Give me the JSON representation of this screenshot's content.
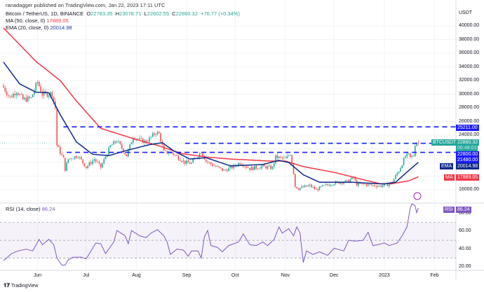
{
  "header": {
    "published": "ranadagger published on TradingView.com, Jan 22, 2023 17:11 UTC"
  },
  "legend": {
    "symbol": "Bitcoin / TetherUS, 1D, BINANCE",
    "o_label": "O",
    "o": "22783.35",
    "h_label": "H",
    "h": "23078.71",
    "l_label": "L",
    "l": "22602.55",
    "c_label": "C",
    "c": "22860.32",
    "change": "+76.77 (+0.34%)"
  },
  "ma": {
    "label": "MA (50, close, 0)",
    "value": "17889.05",
    "tag": "MA",
    "color": "#f23645"
  },
  "ema": {
    "label": "EMA (20, close, 0)",
    "value": "20014.98",
    "tag": "EMA",
    "color": "#0d2a8a"
  },
  "rsi": {
    "label": "RSI (14, close)",
    "value": "86.24",
    "tag": "RSI",
    "color": "#7e57c2"
  },
  "price_axis": {
    "unit": "USDT",
    "ticks": [
      "40000.00",
      "38000.00",
      "36000.00",
      "34000.00",
      "32000.00",
      "30000.00",
      "28000.00",
      "26000.00",
      "24000.00",
      "16000.00"
    ]
  },
  "rsi_axis": {
    "ticks": [
      "80.00",
      "60.00",
      "40.00",
      "20.00"
    ]
  },
  "time_axis": {
    "ticks": [
      "Jun",
      "Jul",
      "Aug",
      "Sep",
      "Oct",
      "Nov",
      "Dec",
      "2023",
      "Feb"
    ]
  },
  "price_tags": {
    "symbol": "BTCUSDT",
    "last": "22860.32",
    "countdown": "06:48:03",
    "levels": [
      "25211.00",
      "22800.00",
      "21480.00"
    ]
  },
  "footer": {
    "brand": "TradingView"
  },
  "chart_data": {
    "type": "candlestick",
    "title": "Bitcoin / TetherUS, 1D, BINANCE",
    "start_date": "2022-05-11",
    "ylim": [
      14000,
      41000
    ],
    "close_keypoints": [
      [
        0,
        31000
      ],
      [
        4,
        29500
      ],
      [
        8,
        30500
      ],
      [
        12,
        29200
      ],
      [
        17,
        29400
      ],
      [
        21,
        31800
      ],
      [
        24,
        30000
      ],
      [
        30,
        30100
      ],
      [
        32,
        28000
      ],
      [
        33,
        22500
      ],
      [
        37,
        20500
      ],
      [
        38,
        19000
      ],
      [
        40,
        20500
      ],
      [
        46,
        21000
      ],
      [
        51,
        19300
      ],
      [
        56,
        20500
      ],
      [
        60,
        19300
      ],
      [
        66,
        22400
      ],
      [
        70,
        23200
      ],
      [
        76,
        21000
      ],
      [
        80,
        23800
      ],
      [
        84,
        23300
      ],
      [
        88,
        23000
      ],
      [
        94,
        24400
      ],
      [
        96,
        24200
      ],
      [
        99,
        21500
      ],
      [
        104,
        21400
      ],
      [
        112,
        20000
      ],
      [
        116,
        19900
      ],
      [
        122,
        21600
      ],
      [
        125,
        20200
      ],
      [
        130,
        19500
      ],
      [
        136,
        18800
      ],
      [
        142,
        19400
      ],
      [
        146,
        20000
      ],
      [
        152,
        19100
      ],
      [
        160,
        19400
      ],
      [
        166,
        19200
      ],
      [
        168,
        20800
      ],
      [
        174,
        20500
      ],
      [
        177,
        21300
      ],
      [
        179,
        18500
      ],
      [
        180,
        16500
      ],
      [
        182,
        16200
      ],
      [
        189,
        16600
      ],
      [
        193,
        16000
      ],
      [
        197,
        16500
      ],
      [
        204,
        17000
      ],
      [
        212,
        17200
      ],
      [
        216,
        17800
      ],
      [
        218,
        16800
      ],
      [
        223,
        16800
      ],
      [
        232,
        16550
      ],
      [
        238,
        16800
      ],
      [
        240,
        17200
      ],
      [
        244,
        18800
      ],
      [
        248,
        20900
      ],
      [
        250,
        21100
      ],
      [
        251,
        20700
      ],
      [
        253,
        21000
      ],
      [
        254,
        22700
      ],
      [
        255,
        23000
      ],
      [
        256,
        22860.32
      ]
    ],
    "ma50_keypoints": [
      [
        0,
        39700
      ],
      [
        20,
        34800
      ],
      [
        35,
        32000
      ],
      [
        45,
        29000
      ],
      [
        60,
        25000
      ],
      [
        80,
        23500
      ],
      [
        95,
        22500
      ],
      [
        110,
        21300
      ],
      [
        125,
        20800
      ],
      [
        140,
        20500
      ],
      [
        165,
        20200
      ],
      [
        174,
        20200
      ],
      [
        185,
        19400
      ],
      [
        205,
        18500
      ],
      [
        220,
        17600
      ],
      [
        232,
        16900
      ],
      [
        240,
        16900
      ],
      [
        250,
        17300
      ],
      [
        256,
        17889.05
      ]
    ],
    "ema20_keypoints": [
      [
        0,
        34700
      ],
      [
        10,
        31500
      ],
      [
        20,
        30300
      ],
      [
        28,
        30200
      ],
      [
        35,
        27000
      ],
      [
        45,
        23000
      ],
      [
        55,
        21200
      ],
      [
        65,
        21000
      ],
      [
        75,
        21700
      ],
      [
        90,
        22600
      ],
      [
        98,
        22900
      ],
      [
        105,
        21700
      ],
      [
        115,
        20500
      ],
      [
        125,
        20700
      ],
      [
        140,
        19500
      ],
      [
        160,
        19700
      ],
      [
        170,
        20300
      ],
      [
        176,
        20000
      ],
      [
        185,
        18200
      ],
      [
        195,
        17100
      ],
      [
        215,
        17100
      ],
      [
        235,
        16850
      ],
      [
        242,
        17100
      ],
      [
        250,
        18800
      ],
      [
        256,
        20014.98
      ]
    ],
    "horizontal_levels": [
      {
        "price": 25211,
        "from_day": 37
      },
      {
        "price": 22800,
        "from_day": 112
      },
      {
        "price": 21480,
        "from_day": 39
      }
    ],
    "rsi_keypoints": [
      [
        0,
        27
      ],
      [
        5,
        35
      ],
      [
        9,
        38
      ],
      [
        14,
        40
      ],
      [
        18,
        38
      ],
      [
        22,
        51
      ],
      [
        24,
        45
      ],
      [
        28,
        51
      ],
      [
        31,
        45
      ],
      [
        33,
        30
      ],
      [
        36,
        22
      ],
      [
        38,
        22
      ],
      [
        40,
        28
      ],
      [
        43,
        31
      ],
      [
        48,
        31
      ],
      [
        51,
        29
      ],
      [
        55,
        41
      ],
      [
        57,
        47
      ],
      [
        60,
        46
      ],
      [
        63,
        35
      ],
      [
        68,
        48
      ],
      [
        70,
        61
      ],
      [
        75,
        55
      ],
      [
        77,
        46
      ],
      [
        79,
        61
      ],
      [
        84,
        55
      ],
      [
        88,
        53
      ],
      [
        91,
        58
      ],
      [
        95,
        62
      ],
      [
        99,
        55
      ],
      [
        101,
        48
      ],
      [
        103,
        34
      ],
      [
        107,
        40
      ],
      [
        111,
        39
      ],
      [
        114,
        32
      ],
      [
        116,
        38
      ],
      [
        120,
        38
      ],
      [
        122,
        30
      ],
      [
        124,
        54
      ],
      [
        126,
        61
      ],
      [
        128,
        44
      ],
      [
        132,
        42
      ],
      [
        135,
        37
      ],
      [
        139,
        44
      ],
      [
        145,
        48
      ],
      [
        148,
        57
      ],
      [
        152,
        45
      ],
      [
        156,
        44
      ],
      [
        160,
        48
      ],
      [
        163,
        44
      ],
      [
        167,
        51
      ],
      [
        170,
        65
      ],
      [
        172,
        58
      ],
      [
        176,
        63
      ],
      [
        179,
        55
      ],
      [
        181,
        65
      ],
      [
        183,
        58
      ],
      [
        185,
        25
      ],
      [
        187,
        38
      ],
      [
        191,
        34
      ],
      [
        195,
        37
      ],
      [
        200,
        33
      ],
      [
        204,
        41
      ],
      [
        210,
        38
      ],
      [
        213,
        50
      ],
      [
        217,
        49
      ],
      [
        222,
        50
      ],
      [
        225,
        59
      ],
      [
        228,
        44
      ],
      [
        231,
        45
      ],
      [
        235,
        47
      ],
      [
        238,
        44
      ],
      [
        243,
        47
      ],
      [
        246,
        55
      ],
      [
        249,
        65
      ],
      [
        251,
        86
      ],
      [
        252,
        91
      ],
      [
        254,
        89
      ],
      [
        255,
        81
      ],
      [
        256,
        86.24
      ]
    ],
    "rsi_ylim": [
      15,
      95
    ],
    "rsi_bands": [
      30,
      50,
      70
    ],
    "month_days": [
      21,
      51,
      82,
      113,
      143,
      174,
      204,
      235,
      266
    ]
  }
}
